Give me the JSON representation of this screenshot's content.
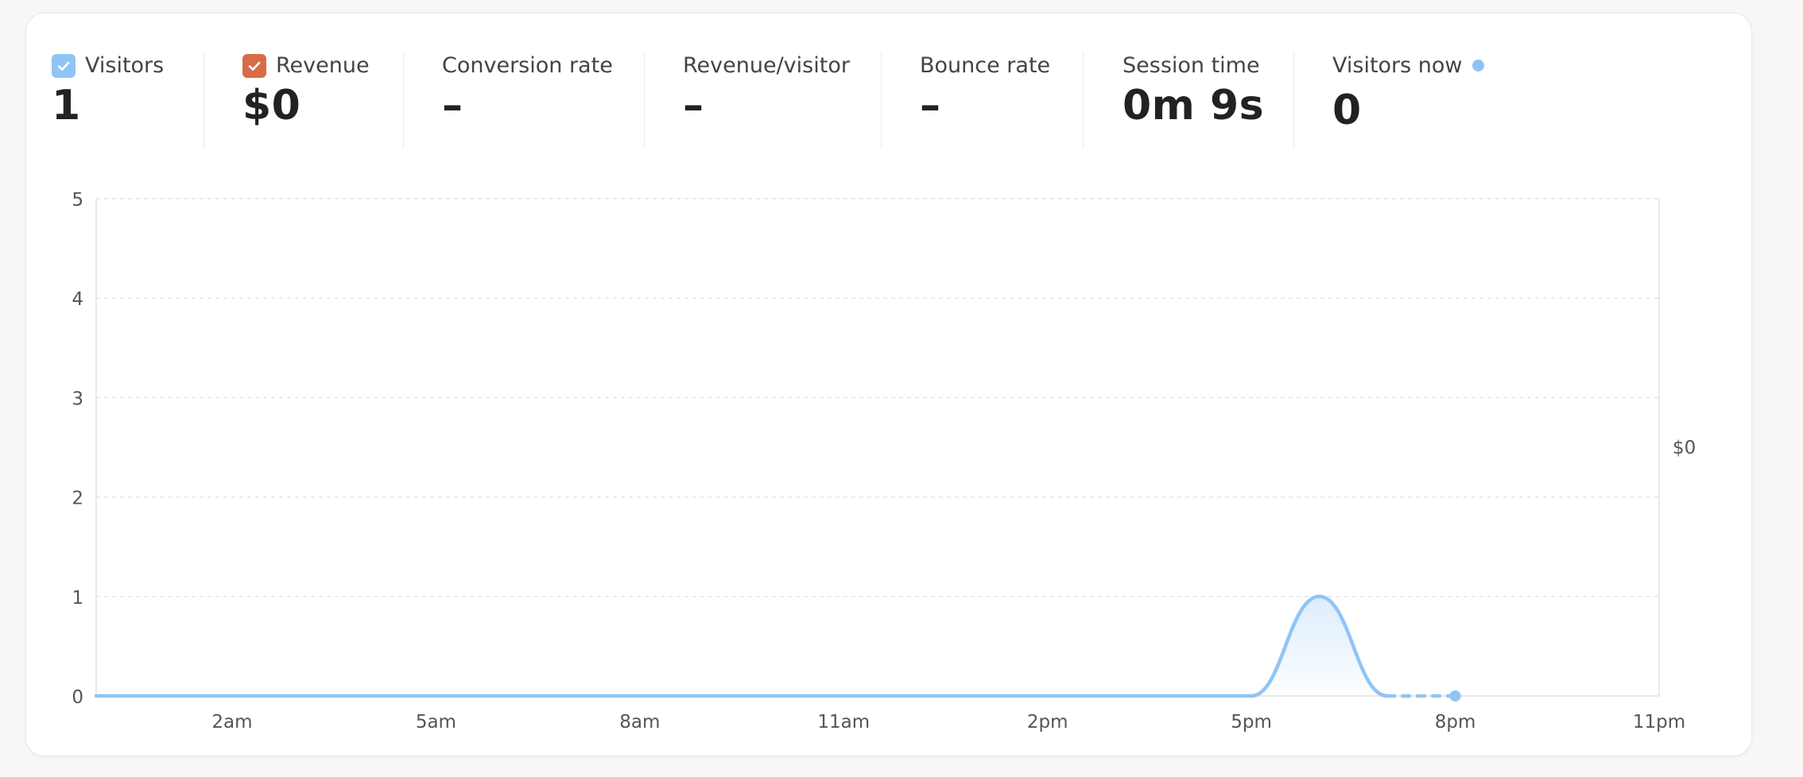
{
  "colors": {
    "visitors": "#90c4f5",
    "revenue": "#d86b48",
    "live": "#8cc2f6"
  },
  "metrics": {
    "visitors": {
      "label": "Visitors",
      "value": "1",
      "checked": true,
      "icon": "check-icon"
    },
    "revenue": {
      "label": "Revenue",
      "value": "$0",
      "checked": true,
      "icon": "check-icon"
    },
    "conversion_rate": {
      "label": "Conversion rate",
      "value": "–"
    },
    "revenue_per_visitor": {
      "label": "Revenue/visitor",
      "value": "–"
    },
    "bounce_rate": {
      "label": "Bounce rate",
      "value": "–"
    },
    "session_time": {
      "label": "Session time",
      "value": "0m 9s"
    },
    "visitors_now": {
      "label": "Visitors now",
      "value": "0",
      "icon": "live-dot-icon"
    }
  },
  "chart_data": {
    "type": "line",
    "x_range": [
      "12am",
      "12am"
    ],
    "x_ticks": [
      "2am",
      "5am",
      "8am",
      "11am",
      "2pm",
      "5pm",
      "8pm",
      "11pm"
    ],
    "y_ticks": [
      "0",
      "1",
      "2",
      "3",
      "4",
      "5"
    ],
    "ylim": [
      0,
      5
    ],
    "grid": true,
    "right_axis_label": "$0",
    "series": [
      {
        "name": "Visitors",
        "x_hours": [
          0,
          1,
          2,
          3,
          4,
          5,
          6,
          7,
          8,
          9,
          10,
          11,
          12,
          13,
          14,
          15,
          16,
          17,
          18,
          19
        ],
        "values": [
          0,
          0,
          0,
          0,
          0,
          0,
          0,
          0,
          0,
          0,
          0,
          0,
          0,
          0,
          0,
          0,
          0,
          0,
          1,
          0
        ],
        "incomplete_from_hour": 19,
        "incomplete_to_hour": 20,
        "incomplete_value": 0
      }
    ]
  }
}
